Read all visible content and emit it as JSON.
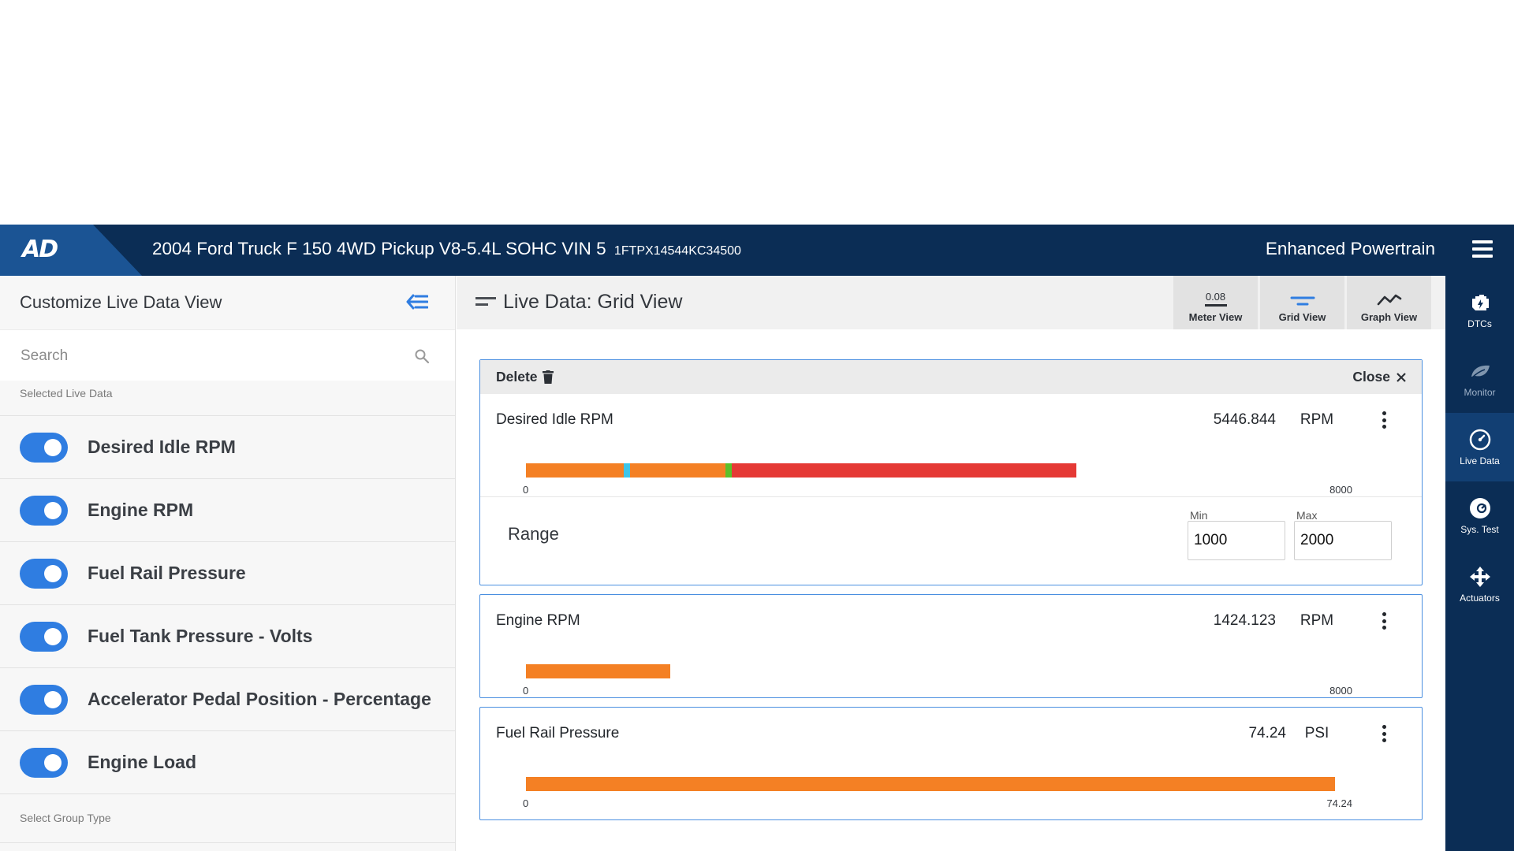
{
  "header": {
    "logo": "AD",
    "vehicle": "2004 Ford Truck F 150 4WD Pickup V8-5.4L SOHC VIN 5",
    "vin": "1FTPX14544KC34500",
    "module": "Enhanced Powertrain"
  },
  "sidebar": {
    "title": "Customize Live Data View",
    "search_placeholder": "Search",
    "selected_label": "Selected Live Data",
    "items": [
      {
        "label": "Desired Idle RPM",
        "enabled": true
      },
      {
        "label": "Engine RPM",
        "enabled": true
      },
      {
        "label": "Fuel Rail Pressure",
        "enabled": true
      },
      {
        "label": "Fuel Tank Pressure - Volts",
        "enabled": true
      },
      {
        "label": "Accelerator Pedal Position - Percentage",
        "enabled": true
      },
      {
        "label": "Engine Load",
        "enabled": true
      }
    ],
    "group_label": "Select Group Type"
  },
  "main": {
    "title": "Live Data: Grid View",
    "tabs": [
      {
        "label": "Meter View",
        "value": "0.08"
      },
      {
        "label": "Grid View"
      },
      {
        "label": "Graph View"
      }
    ],
    "toolbar": {
      "delete": "Delete",
      "close": "Close"
    },
    "pids": [
      {
        "name": "Desired Idle RPM",
        "value": "5446.844",
        "unit": "RPM",
        "min": "0",
        "max": "8000",
        "fill_fraction": 0.68,
        "range": {
          "label": "Range",
          "min_label": "Min",
          "max_label": "Max",
          "min": "1000",
          "max": "2000"
        }
      },
      {
        "name": "Engine RPM",
        "value": "1424.123",
        "unit": "RPM",
        "min": "0",
        "max": "8000",
        "fill_fraction": 0.178
      },
      {
        "name": "Fuel Rail Pressure",
        "value": "74.24",
        "unit": "PSI",
        "min": "0",
        "max": "74.24",
        "fill_fraction": 1.0
      }
    ]
  },
  "rightnav": [
    {
      "label": "DTCs",
      "icon": "engine-icon"
    },
    {
      "label": "Monitor",
      "icon": "leaf-icon"
    },
    {
      "label": "Live Data",
      "icon": "gauge-icon",
      "active": true
    },
    {
      "label": "Sys. Test",
      "icon": "speedometer-icon"
    },
    {
      "label": "Actuators",
      "icon": "move-arrows-icon"
    }
  ],
  "colors": {
    "header": "#0b2d55",
    "accent": "#2f7de1",
    "bar_normal": "#f48024",
    "bar_over": "#e53935",
    "marker_min": "#3ec5e8",
    "marker_max": "#5cbf2a"
  }
}
